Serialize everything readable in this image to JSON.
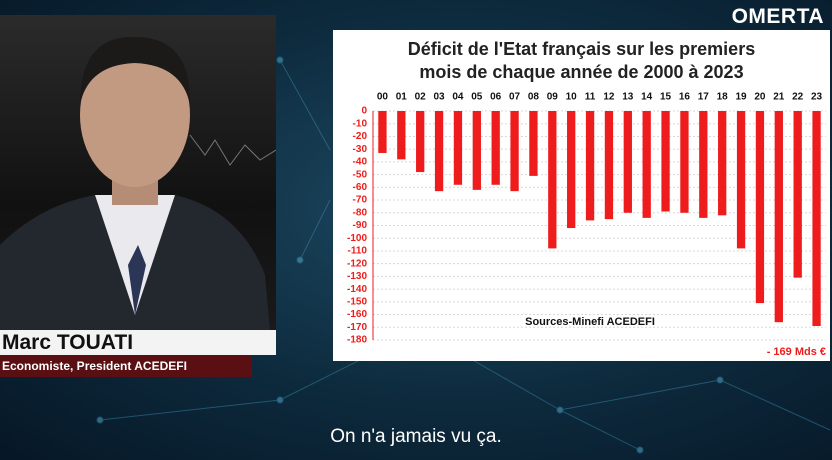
{
  "logo": "OMERTA",
  "speaker": {
    "name": "Marc TOUATI",
    "role": "Economiste, President ACEDEFI"
  },
  "subtitle": "On n'a jamais vu ça.",
  "chart_data": {
    "type": "bar",
    "title": "Déficit de l'Etat français sur les premiers mois de chaque année de 2000 à 2023",
    "categories": [
      "00",
      "01",
      "02",
      "03",
      "04",
      "05",
      "06",
      "07",
      "08",
      "09",
      "10",
      "11",
      "12",
      "13",
      "14",
      "15",
      "16",
      "17",
      "18",
      "19",
      "20",
      "21",
      "22",
      "23"
    ],
    "values": [
      -33,
      -38,
      -48,
      -63,
      -58,
      -62,
      -58,
      -63,
      -51,
      -108,
      -92,
      -86,
      -85,
      -80,
      -84,
      -79,
      -80,
      -84,
      -82,
      -108,
      -151,
      -166,
      -131,
      -169
    ],
    "color": "#ee1c1c",
    "ylim": [
      -180,
      0
    ],
    "yticks": [
      0,
      -10,
      -20,
      -30,
      -40,
      -50,
      -60,
      -70,
      -80,
      -90,
      -100,
      -110,
      -120,
      -130,
      -140,
      -150,
      -160,
      -170,
      -180
    ],
    "grid": true,
    "annotations": [
      "Sources-Minefi ACEDEFI",
      "- 169 Mds €"
    ]
  }
}
